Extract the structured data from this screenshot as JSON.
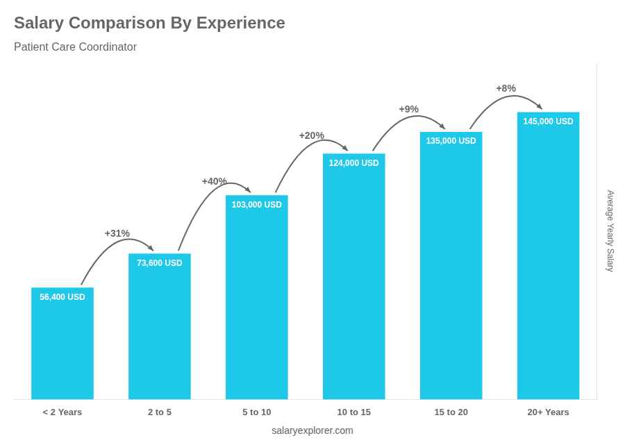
{
  "chart_data": {
    "type": "bar",
    "title": "Salary Comparison By Experience",
    "subtitle": "Patient Care Coordinator",
    "categories": [
      "< 2 Years",
      "2 to 5",
      "5 to 10",
      "10 to 15",
      "15 to 20",
      "20+ Years"
    ],
    "values": [
      56400,
      73600,
      103000,
      124000,
      135000,
      145000
    ],
    "value_labels": [
      "56,400 USD",
      "73,600 USD",
      "103,000 USD",
      "124,000 USD",
      "135,000 USD",
      "145,000 USD"
    ],
    "data_labels": true,
    "annotations": [
      "+31%",
      "+40%",
      "+20%",
      "+9%",
      "+8%"
    ],
    "color": "#1ec8e8",
    "ylabel": "Average Yearly Salary",
    "footer": "salaryexplorer.com",
    "ylim": [
      0,
      170000
    ],
    "tick_labels": "x",
    "grid": false
  }
}
